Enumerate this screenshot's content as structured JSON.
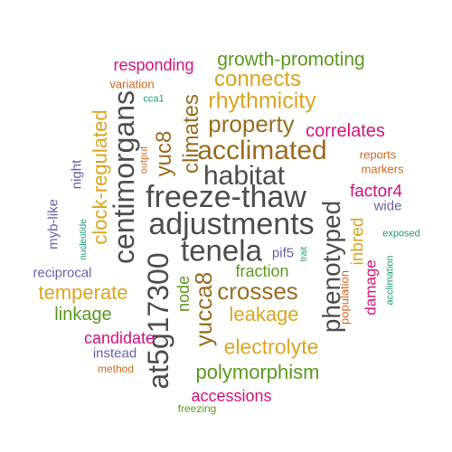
{
  "palette": {
    "dark_gray": "#4d4d4d",
    "brown": "#9a6b1e",
    "gold": "#dba520",
    "green": "#5b9a1f",
    "magenta": "#d6127a",
    "purple": "#6a5fa8",
    "teal": "#1b9a77",
    "orange": "#d4661e"
  },
  "words": [
    {
      "text": "freeze-thaw",
      "color": "dark_gray"
    },
    {
      "text": "adjustments",
      "color": "dark_gray"
    },
    {
      "text": "tenela",
      "color": "dark_gray"
    },
    {
      "text": "habitat",
      "color": "dark_gray"
    },
    {
      "text": "at5g17300",
      "color": "dark_gray"
    },
    {
      "text": "centimorgans",
      "color": "dark_gray"
    },
    {
      "text": "phenotyped",
      "color": "dark_gray"
    },
    {
      "text": "acclimated",
      "color": "brown"
    },
    {
      "text": "property",
      "color": "brown"
    },
    {
      "text": "crosses",
      "color": "brown"
    },
    {
      "text": "yucca8",
      "color": "brown"
    },
    {
      "text": "yuc8",
      "color": "brown"
    },
    {
      "text": "climates",
      "color": "brown"
    },
    {
      "text": "rhythmicity",
      "color": "gold"
    },
    {
      "text": "connects",
      "color": "gold"
    },
    {
      "text": "electrolyte",
      "color": "gold"
    },
    {
      "text": "leakage",
      "color": "gold"
    },
    {
      "text": "temperate",
      "color": "gold"
    },
    {
      "text": "clock-regulated",
      "color": "gold"
    },
    {
      "text": "inbred",
      "color": "gold"
    },
    {
      "text": "growth-promoting",
      "color": "green"
    },
    {
      "text": "polymorphism",
      "color": "green"
    },
    {
      "text": "linkage",
      "color": "green"
    },
    {
      "text": "fraction",
      "color": "green"
    },
    {
      "text": "node",
      "color": "green"
    },
    {
      "text": "freezing",
      "color": "green"
    },
    {
      "text": "responding",
      "color": "magenta"
    },
    {
      "text": "correlates",
      "color": "magenta"
    },
    {
      "text": "factor4",
      "color": "magenta"
    },
    {
      "text": "candidate",
      "color": "magenta"
    },
    {
      "text": "accessions",
      "color": "magenta"
    },
    {
      "text": "damage",
      "color": "magenta"
    },
    {
      "text": "night",
      "color": "purple"
    },
    {
      "text": "myb-like",
      "color": "purple"
    },
    {
      "text": "reciprocal",
      "color": "purple"
    },
    {
      "text": "wide",
      "color": "purple"
    },
    {
      "text": "pif5",
      "color": "purple"
    },
    {
      "text": "instead",
      "color": "purple"
    },
    {
      "text": "cca1",
      "color": "teal"
    },
    {
      "text": "nucleotide",
      "color": "teal"
    },
    {
      "text": "trait",
      "color": "teal"
    },
    {
      "text": "exposed",
      "color": "teal"
    },
    {
      "text": "acclimation",
      "color": "teal"
    },
    {
      "text": "variation",
      "color": "orange"
    },
    {
      "text": "output",
      "color": "orange"
    },
    {
      "text": "reports",
      "color": "orange"
    },
    {
      "text": "markers",
      "color": "orange"
    },
    {
      "text": "population",
      "color": "orange"
    },
    {
      "text": "method",
      "color": "orange"
    }
  ]
}
